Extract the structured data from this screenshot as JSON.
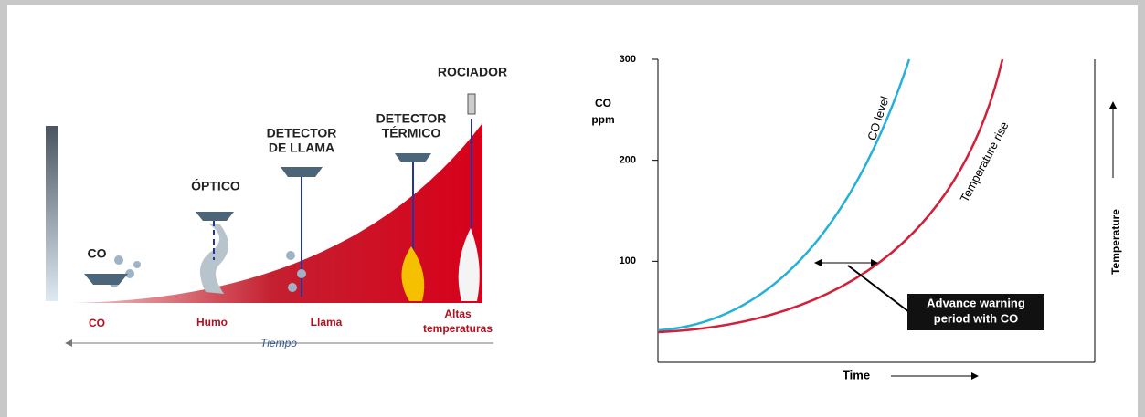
{
  "left_diagram": {
    "devices": [
      {
        "lines": [
          "CO"
        ]
      },
      {
        "lines": [
          "ÓPTICO"
        ]
      },
      {
        "lines": [
          "DETECTOR",
          "DE LLAMA"
        ]
      },
      {
        "lines": [
          "DETECTOR",
          "TÉRMICO"
        ]
      },
      {
        "lines": [
          "ROCIADOR"
        ]
      }
    ],
    "stages": [
      {
        "lines": [
          "CO"
        ]
      },
      {
        "lines": [
          "Humo"
        ]
      },
      {
        "lines": [
          "Llama"
        ]
      },
      {
        "lines": [
          "Altas",
          "temperaturas"
        ]
      }
    ],
    "time_label": "Tiempo"
  },
  "right_chart": {
    "y_label": [
      "CO",
      "ppm"
    ],
    "ylim": [
      0,
      300
    ],
    "yticks": [
      100,
      200,
      300
    ],
    "x_label": "Time",
    "y2_label": "Temperature",
    "curve_labels": [
      "CO level",
      "Temperature rise"
    ],
    "callout": [
      "Advance warning",
      "period with CO"
    ]
  }
}
